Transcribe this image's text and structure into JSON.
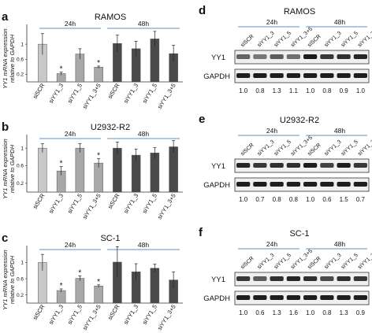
{
  "panels": [
    {
      "id": "a",
      "title": "RAMOS",
      "ylabel": "YY1 mRNA expression relative to GAPDH",
      "groups": [
        "24h",
        "48h"
      ],
      "chart_data": {
        "type": "bar",
        "categories": [
          "siSCR",
          "siYY1_3",
          "siYY1_5",
          "siYY1_3+5",
          "siSCR",
          "siYY1_3",
          "siYY1_5",
          "siYY1_3+5"
        ],
        "yticks": [
          "0.2",
          "0.6",
          "1"
        ],
        "ylim": [
          0,
          1.4
        ],
        "series": [
          {
            "values": [
              1.0,
              0.22,
              0.74,
              0.39,
              1.02,
              0.88,
              1.14,
              0.75
            ],
            "errors": [
              0.28,
              0.04,
              0.14,
              0.03,
              0.22,
              0.2,
              0.2,
              0.22
            ]
          }
        ],
        "significance": [
          "",
          "*",
          "",
          "*",
          "",
          "",
          "",
          ""
        ]
      }
    },
    {
      "id": "b",
      "title": "U2932-R2",
      "ylabel": "YY1 mRNA expression relative to GAPDH",
      "groups": [
        "24h",
        "48h"
      ],
      "chart_data": {
        "type": "bar",
        "categories": [
          "siSCR",
          "siYY1_3",
          "siYY1_5",
          "siYY1_3+5",
          "siSCR",
          "siYY1_3",
          "siYY1_5",
          "siYY1_3+5"
        ],
        "yticks": [
          "0.2",
          "0.6",
          "1"
        ],
        "ylim": [
          0,
          1.2
        ],
        "series": [
          {
            "values": [
              1.0,
              0.48,
              1.0,
              0.66,
              1.0,
              0.84,
              0.89,
              1.03
            ],
            "errors": [
              0.1,
              0.1,
              0.1,
              0.1,
              0.14,
              0.14,
              0.12,
              0.14
            ]
          }
        ],
        "significance": [
          "",
          "*",
          "",
          "*",
          "",
          "",
          "",
          ""
        ]
      }
    },
    {
      "id": "c",
      "title": "SC-1",
      "ylabel": "YY1 mRNA expression relative to GAPDH",
      "groups": [
        "24h",
        "48h"
      ],
      "chart_data": {
        "type": "bar",
        "categories": [
          "siSCR",
          "siYY1_3",
          "siYY1_5",
          "siYY1_3+5",
          "siSCR",
          "siYY1_3",
          "siYY1_5",
          "siYY1_3+5"
        ],
        "yticks": [
          "0.2",
          "0.6",
          "1"
        ],
        "ylim": [
          0,
          1.3
        ],
        "series": [
          {
            "values": [
              1.0,
              0.31,
              0.61,
              0.42,
              1.01,
              0.77,
              0.86,
              0.57
            ],
            "errors": [
              0.2,
              0.04,
              0.06,
              0.03,
              0.38,
              0.2,
              0.1,
              0.2
            ]
          }
        ],
        "significance": [
          "",
          "*",
          "*",
          "*",
          "",
          "",
          "",
          ""
        ]
      }
    }
  ],
  "blots": [
    {
      "id": "d",
      "title": "RAMOS",
      "groups": [
        "24h",
        "48h"
      ],
      "lanes": [
        "siSCR",
        "siYY1_3",
        "siYY1_5",
        "siYY1_3+5",
        "siSCR",
        "siYY1_3",
        "siYY1_5",
        "siYY1_3+5"
      ],
      "rows": [
        "YY1",
        "GAPDH"
      ],
      "quant": [
        "1.0",
        "0.8",
        "1.3",
        "1.1",
        "1.0",
        "0.8",
        "0.9",
        "1.0"
      ],
      "yy1_intensity": [
        0.55,
        0.45,
        0.6,
        0.5,
        0.95,
        0.8,
        0.85,
        0.9
      ]
    },
    {
      "id": "e",
      "title": "U2932-R2",
      "groups": [
        "24h",
        "48h"
      ],
      "lanes": [
        "siSCR",
        "siYY1_3",
        "siYY1_5",
        "siYY1_3+5",
        "siSCR",
        "siYY1_3",
        "siYY1_5",
        "siYY1_3+5"
      ],
      "rows": [
        "YY1",
        "GAPDH"
      ],
      "quant": [
        "1.0",
        "0.7",
        "0.8",
        "0.8",
        "1.0",
        "0.6",
        "1.5",
        "0.7"
      ],
      "yy1_intensity": [
        0.9,
        0.8,
        0.85,
        0.85,
        0.95,
        0.75,
        0.95,
        0.8
      ]
    },
    {
      "id": "f",
      "title": "SC-1",
      "groups": [
        "24h",
        "48h"
      ],
      "lanes": [
        "siSCR",
        "siYY1_3",
        "siYY1_5",
        "siYY1_3+5",
        "siSCR",
        "siYY1_3",
        "siYY1_5",
        "siYY1_3+5"
      ],
      "rows": [
        "YY1",
        "GAPDH"
      ],
      "quant": [
        "1.0",
        "0.6",
        "1.3",
        "1.6",
        "1.0",
        "0.8",
        "1.3",
        "0.9"
      ],
      "yy1_intensity": [
        0.8,
        0.6,
        0.85,
        0.9,
        0.85,
        0.7,
        0.85,
        0.8
      ]
    }
  ],
  "colors": {
    "bar_24h_ctrl": "#c8c8c8",
    "bar_24h_si": "#a8a8a8",
    "bar_48h": "#4a4a4a",
    "bracket": "#5b8fc9"
  }
}
